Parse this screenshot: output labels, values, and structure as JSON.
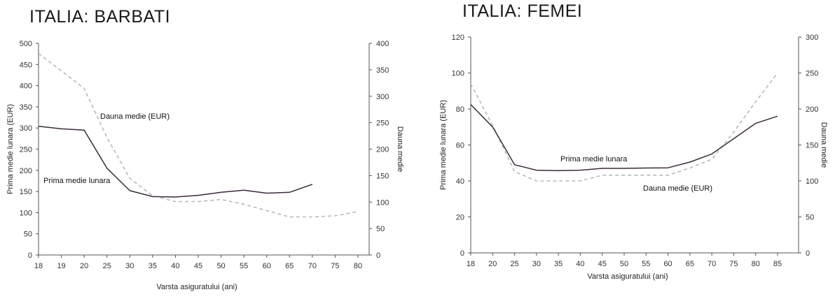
{
  "chart_data": [
    {
      "type": "line",
      "title": "ITALIA: BARBATI",
      "xlabel": "Varsta asiguratului (ani)",
      "ylabel": "Prima medie lunara (EUR)",
      "y2label": "Dauna medie",
      "categories": [
        "18",
        "19",
        "20",
        "25",
        "30",
        "35",
        "40",
        "45",
        "50",
        "55",
        "60",
        "65",
        "70",
        "75",
        "80"
      ],
      "ylim": [
        0,
        500
      ],
      "yticks": [
        0,
        50,
        100,
        150,
        200,
        250,
        300,
        350,
        400,
        450,
        500
      ],
      "y2lim": [
        0,
        400
      ],
      "y2ticks": [
        0,
        50,
        100,
        150,
        200,
        250,
        300,
        350,
        400
      ],
      "series": [
        {
          "name": "Prima medie lunara",
          "axis": "left",
          "style": "solid",
          "color": "#3a2a3a",
          "values": [
            304,
            298,
            295,
            205,
            152,
            138,
            137,
            141,
            148,
            153,
            146,
            148,
            167,
            null,
            null
          ]
        },
        {
          "name": "Dauna medie (EUR)",
          "axis": "right",
          "style": "dashed",
          "color": "#b9b9bd",
          "values": [
            381,
            348,
            315,
            222,
            145,
            112,
            101,
            101,
            105,
            96,
            84,
            72,
            72,
            74,
            82
          ]
        }
      ],
      "annotations": [
        {
          "text": "Dauna medie (EUR)"
        },
        {
          "text": "Prima medie lunara"
        }
      ]
    },
    {
      "type": "line",
      "title": "ITALIA: FEMEI",
      "xlabel": "Varsta asiguratului (ani)",
      "ylabel": "Prima medie lunara (EUR)",
      "y2label": "Dauna medie",
      "categories": [
        "18",
        "20",
        "25",
        "30",
        "35",
        "40",
        "45",
        "50",
        "55",
        "60",
        "65",
        "70",
        "75",
        "80",
        "85"
      ],
      "ylim": [
        0,
        120
      ],
      "yticks": [
        0,
        20,
        40,
        60,
        80,
        100,
        120
      ],
      "y2lim": [
        0,
        300
      ],
      "y2ticks": [
        0,
        50,
        100,
        150,
        200,
        250,
        300
      ],
      "series": [
        {
          "name": "Prima medie lunara",
          "axis": "left",
          "style": "solid",
          "color": "#3a2a3a",
          "values": [
            82.5,
            70,
            49,
            46,
            45.7,
            46,
            47,
            47,
            47.2,
            47.3,
            50.5,
            55,
            63.5,
            72,
            76
          ]
        },
        {
          "name": "Dauna medie (EUR)",
          "axis": "right",
          "style": "dashed",
          "color": "#b9b9bd",
          "values": [
            235,
            177,
            113,
            100,
            100,
            100,
            108,
            108,
            108,
            108,
            118,
            130,
            168,
            210,
            250
          ]
        }
      ],
      "annotations": [
        {
          "text": "Prima medie lunara"
        },
        {
          "text": "Dauna medie (EUR)"
        }
      ]
    }
  ]
}
